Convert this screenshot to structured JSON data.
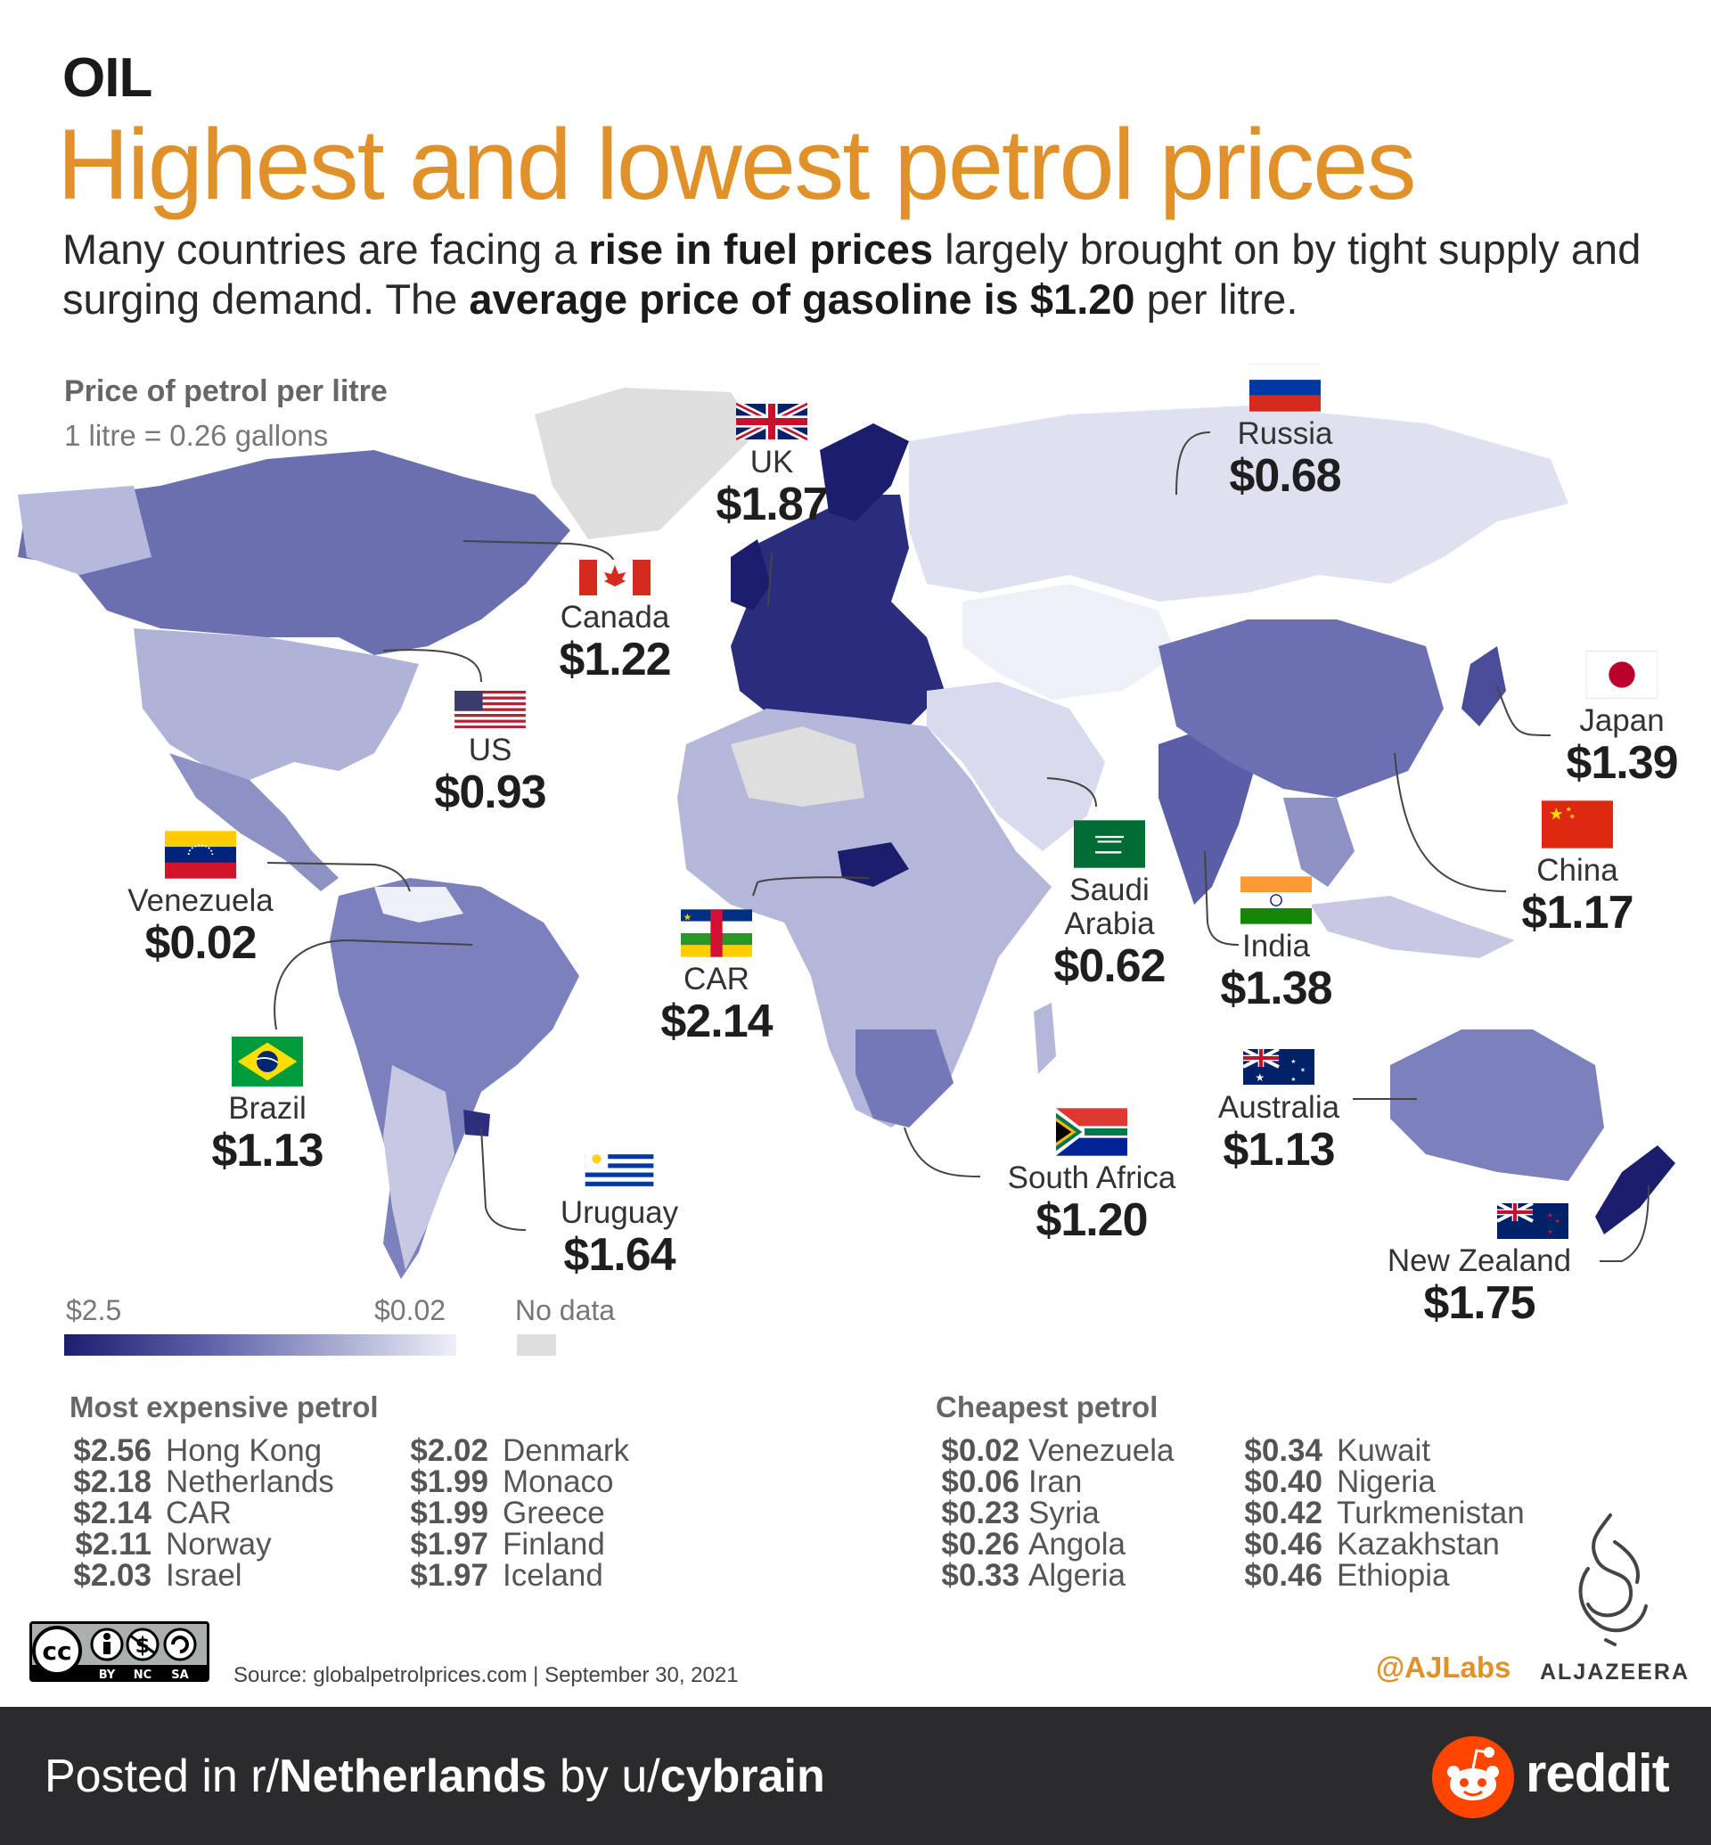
{
  "header": {
    "kicker": "OIL",
    "title": "Highest and lowest petrol prices",
    "subtitle_parts": [
      "Many countries are facing a ",
      "rise in fuel prices",
      " largely brought on by tight supply and surging demand. The ",
      "average price of gasoline is $1.20",
      " per litre."
    ]
  },
  "map": {
    "heading": "Price of petrol per litre",
    "unit_note": "1 litre = 0.26 gallons",
    "colors": {
      "highest": "#1d1d6e",
      "lowest": "#eef0f8",
      "no_data": "#dedede",
      "accent": "#e0912a"
    }
  },
  "callouts": [
    {
      "country": "UK",
      "price": "$1.87",
      "flag": "uk-flag-icon"
    },
    {
      "country": "Russia",
      "price": "$0.68",
      "flag": "russia-flag-icon"
    },
    {
      "country": "Canada",
      "price": "$1.22",
      "flag": "canada-flag-icon"
    },
    {
      "country": "US",
      "price": "$0.93",
      "flag": "us-flag-icon"
    },
    {
      "country": "Japan",
      "price": "$1.39",
      "flag": "japan-flag-icon"
    },
    {
      "country": "China",
      "price": "$1.17",
      "flag": "china-flag-icon"
    },
    {
      "country": "Venezuela",
      "price": "$0.02",
      "flag": "venezuela-flag-icon"
    },
    {
      "country": "CAR",
      "price": "$2.14",
      "flag": "car-flag-icon"
    },
    {
      "country": "Saudi Arabia",
      "price": "$0.62",
      "flag": "saudi-arabia-flag-icon"
    },
    {
      "country": "India",
      "price": "$1.38",
      "flag": "india-flag-icon"
    },
    {
      "country": "Brazil",
      "price": "$1.13",
      "flag": "brazil-flag-icon"
    },
    {
      "country": "Australia",
      "price": "$1.13",
      "flag": "australia-flag-icon"
    },
    {
      "country": "Uruguay",
      "price": "$1.64",
      "flag": "uruguay-flag-icon"
    },
    {
      "country": "South Africa",
      "price": "$1.20",
      "flag": "south-africa-flag-icon"
    },
    {
      "country": "New Zealand",
      "price": "$1.75",
      "flag": "new-zealand-flag-icon"
    }
  ],
  "legend": {
    "max": "$2.5",
    "min": "$0.02",
    "no_data": "No data"
  },
  "most_expensive": {
    "title": "Most expensive petrol",
    "items": [
      {
        "price": "$2.56",
        "country": "Hong Kong"
      },
      {
        "price": "$2.18",
        "country": "Netherlands"
      },
      {
        "price": "$2.14",
        "country": "CAR"
      },
      {
        "price": "$2.11",
        "country": "Norway"
      },
      {
        "price": "$2.03",
        "country": "Israel"
      },
      {
        "price": "$2.02",
        "country": "Denmark"
      },
      {
        "price": "$1.99",
        "country": "Monaco"
      },
      {
        "price": "$1.99",
        "country": "Greece"
      },
      {
        "price": "$1.97",
        "country": "Finland"
      },
      {
        "price": "$1.97",
        "country": "Iceland"
      }
    ]
  },
  "cheapest": {
    "title": "Cheapest petrol",
    "items": [
      {
        "price": "$0.02",
        "country": "Venezuela"
      },
      {
        "price": "$0.06",
        "country": "Iran"
      },
      {
        "price": "$0.23",
        "country": "Syria"
      },
      {
        "price": "$0.26",
        "country": "Angola"
      },
      {
        "price": "$0.33",
        "country": "Algeria"
      },
      {
        "price": "$0.34",
        "country": "Kuwait"
      },
      {
        "price": "$0.40",
        "country": "Nigeria"
      },
      {
        "price": "$0.42",
        "country": "Turkmenistan"
      },
      {
        "price": "$0.46",
        "country": "Kazakhstan"
      },
      {
        "price": "$0.46",
        "country": "Ethiopia"
      }
    ]
  },
  "license": {
    "cc_labels": [
      "BY",
      "NC",
      "SA"
    ],
    "icon": "creative-commons-icon"
  },
  "source": "Source: globalpetrolprices.com |  September 30, 2021",
  "credits": {
    "handle": "@AJLabs",
    "brand": "ALJAZEERA",
    "logo": "al-jazeera-logo"
  },
  "footer": {
    "posted_prefix": "Posted in r/",
    "subreddit": "Netherlands",
    "by": " by u/",
    "user": "cybrain",
    "brand": "reddit",
    "brand_icon": "reddit-alien-icon",
    "brand_color": "#ff4500"
  }
}
